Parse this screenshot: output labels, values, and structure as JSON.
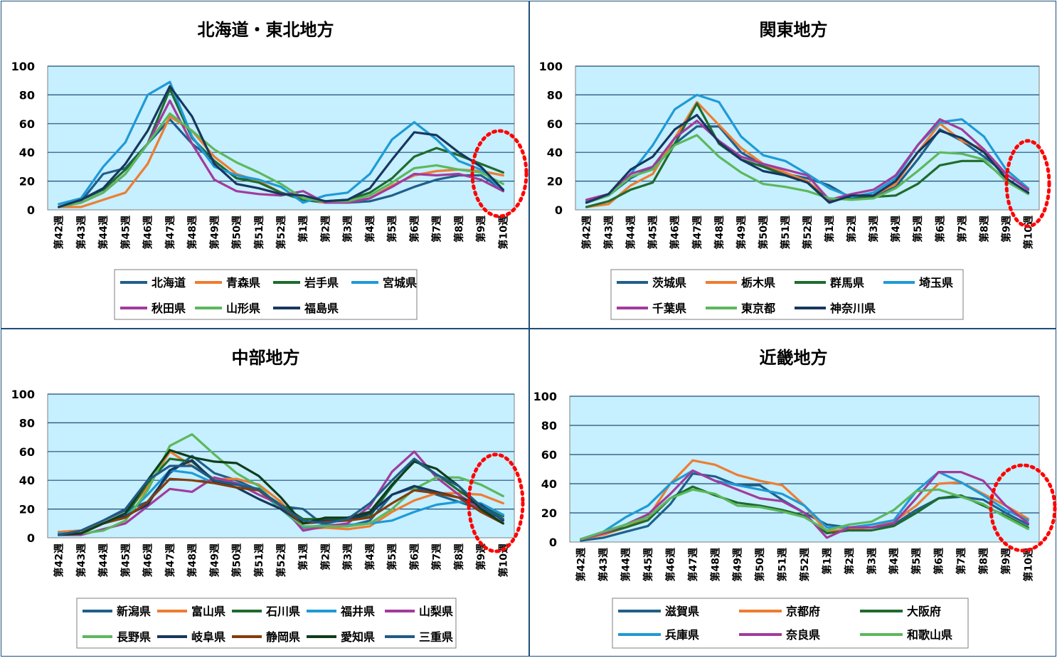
{
  "chart_data": [
    {
      "type": "line",
      "title": "北海道・東北地方",
      "ylim": [
        0,
        100
      ],
      "yticks": [
        0,
        20,
        40,
        60,
        80,
        100
      ],
      "categories": [
        "第42週",
        "第43週",
        "第44週",
        "第45週",
        "第46週",
        "第47週",
        "第48週",
        "第49週",
        "第50週",
        "第51週",
        "第52週",
        "第1週",
        "第2週",
        "第3週",
        "第4週",
        "第5週",
        "第6週",
        "第7週",
        "第8週",
        "第9週",
        "第10週"
      ],
      "series": [
        {
          "name": "北海道",
          "color": "#1f5f8b",
          "values": [
            2,
            6,
            25,
            29,
            46,
            63,
            46,
            34,
            22,
            20,
            12,
            7,
            5,
            5,
            6,
            10,
            16,
            21,
            24,
            24,
            14
          ]
        },
        {
          "name": "青森県",
          "color": "#ed7d31",
          "values": [
            2,
            2,
            7,
            12,
            32,
            65,
            55,
            37,
            25,
            20,
            12,
            8,
            5,
            5,
            8,
            17,
            24,
            27,
            28,
            27,
            24
          ]
        },
        {
          "name": "岩手県",
          "color": "#1e6b2e",
          "values": [
            2,
            7,
            14,
            28,
            46,
            84,
            50,
            34,
            22,
            19,
            12,
            7,
            6,
            7,
            12,
            22,
            37,
            43,
            38,
            32,
            26
          ]
        },
        {
          "name": "宮城県",
          "color": "#1f9ad6",
          "values": [
            4,
            8,
            30,
            47,
            80,
            89,
            51,
            30,
            24,
            21,
            16,
            5,
            10,
            12,
            25,
            49,
            61,
            49,
            34,
            28,
            13
          ]
        },
        {
          "name": "秋田県",
          "color": "#a23b9c",
          "values": [
            2,
            5,
            12,
            25,
            46,
            76,
            46,
            21,
            13,
            11,
            10,
            13,
            5,
            5,
            8,
            16,
            25,
            24,
            25,
            21,
            13
          ]
        },
        {
          "name": "山形県",
          "color": "#5cb85c",
          "values": [
            2,
            5,
            12,
            25,
            46,
            67,
            55,
            42,
            33,
            26,
            18,
            8,
            6,
            6,
            10,
            19,
            29,
            31,
            28,
            26,
            18
          ]
        },
        {
          "name": "福島県",
          "color": "#17375e",
          "values": [
            2,
            7,
            15,
            32,
            55,
            86,
            65,
            32,
            18,
            15,
            11,
            10,
            6,
            7,
            15,
            35,
            54,
            52,
            40,
            30,
            14
          ]
        }
      ]
    },
    {
      "type": "line",
      "title": "関東地方",
      "ylim": [
        0,
        100
      ],
      "yticks": [
        0,
        20,
        40,
        60,
        80,
        100
      ],
      "categories": [
        "第42週",
        "第43週",
        "第44週",
        "第45週",
        "第46週",
        "第47週",
        "第48週",
        "第49週",
        "第50週",
        "第51週",
        "第52週",
        "第1週",
        "第2週",
        "第3週",
        "第4週",
        "第5週",
        "第6週",
        "第7週",
        "第8週",
        "第9週",
        "第10週"
      ],
      "series": [
        {
          "name": "茨城県",
          "color": "#1f5f8b",
          "values": [
            5,
            10,
            22,
            30,
            46,
            58,
            58,
            40,
            31,
            25,
            22,
            17,
            8,
            9,
            16,
            35,
            56,
            48,
            37,
            25,
            14
          ]
        },
        {
          "name": "栃木県",
          "color": "#ed7d31",
          "values": [
            2,
            4,
            17,
            25,
            50,
            75,
            59,
            43,
            32,
            26,
            20,
            7,
            9,
            10,
            18,
            40,
            60,
            48,
            42,
            25,
            15
          ]
        },
        {
          "name": "群馬県",
          "color": "#1e6b2e",
          "values": [
            2,
            6,
            14,
            19,
            46,
            74,
            46,
            35,
            30,
            24,
            19,
            6,
            9,
            9,
            10,
            18,
            31,
            34,
            34,
            21,
            12
          ]
        },
        {
          "name": "埼玉県",
          "color": "#1f9ad6",
          "values": [
            6,
            11,
            25,
            45,
            70,
            80,
            75,
            51,
            38,
            34,
            25,
            15,
            9,
            12,
            22,
            45,
            61,
            63,
            51,
            28,
            15
          ]
        },
        {
          "name": "千葉県",
          "color": "#a23b9c",
          "values": [
            7,
            11,
            25,
            30,
            50,
            62,
            48,
            37,
            32,
            28,
            24,
            7,
            11,
            14,
            24,
            45,
            63,
            56,
            42,
            25,
            14
          ]
        },
        {
          "name": "東京都",
          "color": "#5cb85c",
          "values": [
            5,
            10,
            23,
            28,
            45,
            52,
            37,
            26,
            18,
            16,
            13,
            8,
            7,
            8,
            15,
            27,
            40,
            39,
            35,
            20,
            11
          ]
        },
        {
          "name": "神奈川県",
          "color": "#17375e",
          "values": [
            5,
            11,
            28,
            37,
            56,
            66,
            47,
            35,
            27,
            24,
            19,
            5,
            10,
            10,
            20,
            40,
            55,
            50,
            40,
            22,
            12
          ]
        }
      ]
    },
    {
      "type": "line",
      "title": "中部地方",
      "ylim": [
        0,
        100
      ],
      "yticks": [
        0,
        20,
        40,
        60,
        80,
        100
      ],
      "categories": [
        "第42週",
        "第43週",
        "第44週",
        "第45週",
        "第46週",
        "第47週",
        "第48週",
        "第49週",
        "第50週",
        "第51週",
        "第52週",
        "第1週",
        "第2週",
        "第3週",
        "第4週",
        "第5週",
        "第6週",
        "第7週",
        "第8週",
        "第9週",
        "第10週"
      ],
      "series": [
        {
          "name": "新潟県",
          "color": "#1f5f8b",
          "values": [
            4,
            5,
            12,
            19,
            25,
            45,
            57,
            45,
            40,
            33,
            22,
            20,
            8,
            8,
            12,
            30,
            35,
            30,
            25,
            20,
            13
          ]
        },
        {
          "name": "富山県",
          "color": "#ed7d31",
          "values": [
            4,
            5,
            10,
            17,
            35,
            60,
            50,
            41,
            41,
            37,
            25,
            6,
            7,
            6,
            8,
            18,
            26,
            31,
            31,
            30,
            24
          ]
        },
        {
          "name": "石川県",
          "color": "#1e6b2e",
          "values": [
            2,
            3,
            10,
            15,
            38,
            55,
            53,
            40,
            35,
            33,
            23,
            13,
            13,
            13,
            15,
            36,
            54,
            44,
            33,
            22,
            15
          ]
        },
        {
          "name": "福井県",
          "color": "#1f9ad6",
          "values": [
            3,
            3,
            10,
            15,
            30,
            47,
            45,
            38,
            38,
            33,
            20,
            7,
            9,
            9,
            10,
            12,
            18,
            23,
            25,
            24,
            16
          ]
        },
        {
          "name": "山梨県",
          "color": "#a23b9c",
          "values": [
            2,
            2,
            6,
            10,
            22,
            34,
            32,
            42,
            38,
            30,
            23,
            5,
            8,
            10,
            22,
            46,
            60,
            42,
            30,
            20,
            10
          ]
        },
        {
          "name": "長野県",
          "color": "#5cb85c",
          "values": [
            2,
            3,
            5,
            12,
            33,
            64,
            72,
            58,
            45,
            36,
            20,
            8,
            8,
            8,
            10,
            20,
            34,
            42,
            42,
            37,
            29
          ]
        },
        {
          "name": "岐阜県",
          "color": "#17375e",
          "values": [
            2,
            3,
            10,
            15,
            23,
            47,
            54,
            39,
            35,
            27,
            20,
            10,
            12,
            12,
            17,
            30,
            36,
            32,
            28,
            23,
            12
          ]
        },
        {
          "name": "静岡県",
          "color": "#843c0c",
          "values": [
            2,
            3,
            10,
            14,
            25,
            41,
            40,
            38,
            35,
            33,
            22,
            10,
            11,
            12,
            14,
            24,
            33,
            31,
            28,
            18,
            10
          ]
        },
        {
          "name": "愛知県",
          "color": "#0e3d1a",
          "values": [
            2,
            3,
            10,
            17,
            40,
            61,
            56,
            53,
            52,
            43,
            28,
            10,
            14,
            14,
            18,
            37,
            53,
            48,
            36,
            20,
            10
          ]
        },
        {
          "name": "三重県",
          "color": "#215a86",
          "values": [
            2,
            5,
            12,
            20,
            40,
            50,
            50,
            40,
            37,
            34,
            22,
            12,
            10,
            13,
            24,
            40,
            55,
            44,
            36,
            22,
            13
          ]
        }
      ]
    },
    {
      "type": "line",
      "title": "近畿地方",
      "ylim": [
        0,
        100
      ],
      "yticks": [
        0,
        20,
        40,
        60,
        80,
        100
      ],
      "categories": [
        "第42週",
        "第43週",
        "第44週",
        "第45週",
        "第46週",
        "第47週",
        "第48週",
        "第49週",
        "第50週",
        "第51週",
        "第52週",
        "第1週",
        "第2週",
        "第3週",
        "第4週",
        "第5週",
        "第6週",
        "第7週",
        "第8週",
        "第9週",
        "第10週"
      ],
      "series": [
        {
          "name": "滋賀県",
          "color": "#1f5f8b",
          "values": [
            1,
            3,
            7,
            11,
            26,
            47,
            45,
            39,
            39,
            29,
            20,
            12,
            10,
            10,
            12,
            22,
            30,
            31,
            29,
            20,
            12
          ]
        },
        {
          "name": "京都府",
          "color": "#ed7d31",
          "values": [
            2,
            5,
            10,
            17,
            40,
            56,
            53,
            46,
            42,
            39,
            25,
            7,
            9,
            10,
            14,
            25,
            40,
            41,
            33,
            25,
            16
          ]
        },
        {
          "name": "大阪府",
          "color": "#1e6b2e",
          "values": [
            2,
            6,
            10,
            15,
            30,
            38,
            32,
            27,
            25,
            22,
            18,
            6,
            8,
            8,
            11,
            20,
            30,
            32,
            25,
            18,
            10
          ]
        },
        {
          "name": "兵庫県",
          "color": "#1f9ad6",
          "values": [
            2,
            7,
            17,
            25,
            40,
            49,
            42,
            39,
            36,
            33,
            25,
            10,
            10,
            12,
            15,
            35,
            48,
            41,
            32,
            22,
            15
          ]
        },
        {
          "name": "奈良県",
          "color": "#a23b9c",
          "values": [
            2,
            6,
            12,
            19,
            33,
            49,
            42,
            36,
            30,
            28,
            20,
            3,
            10,
            10,
            13,
            30,
            48,
            48,
            42,
            25,
            13
          ]
        },
        {
          "name": "和歌山県",
          "color": "#5cb85c",
          "values": [
            2,
            7,
            12,
            17,
            30,
            36,
            33,
            25,
            24,
            21,
            17,
            8,
            12,
            14,
            22,
            35,
            36,
            31,
            26,
            17,
            9
          ]
        }
      ]
    }
  ]
}
